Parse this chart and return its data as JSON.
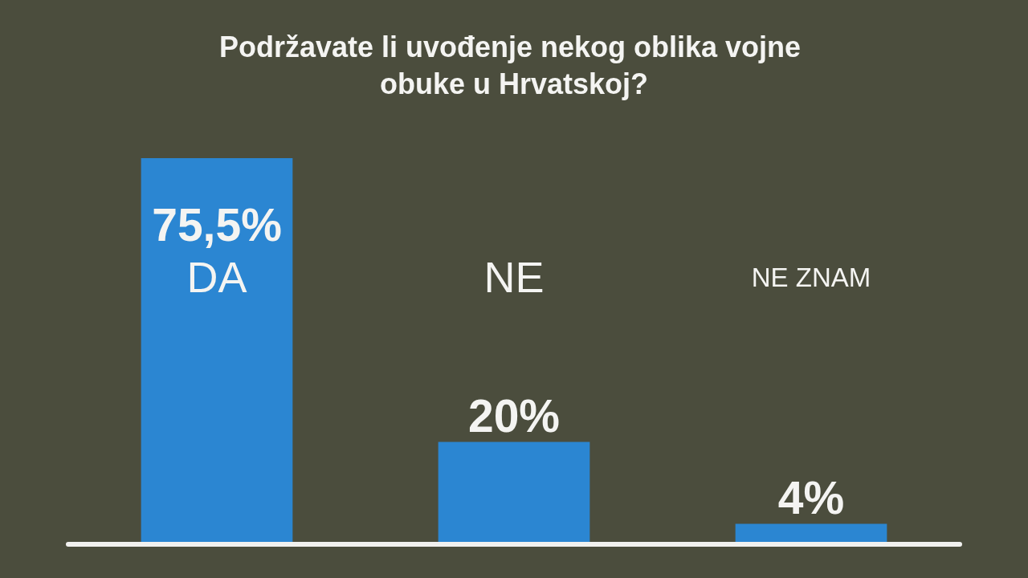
{
  "chart_data": {
    "type": "bar",
    "title": "Podržavate li uvođenje nekog oblika vojne obuke u Hrvatskoj?",
    "categories": [
      "DA",
      "NE",
      "NE ZNAM"
    ],
    "values": [
      75.5,
      20,
      4
    ],
    "value_labels": [
      "75,5%",
      "20%",
      "4%"
    ],
    "color": "#2b86d2"
  }
}
